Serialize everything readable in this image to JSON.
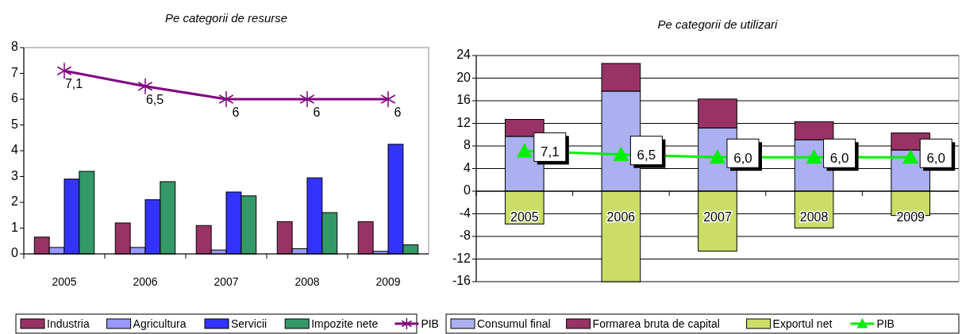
{
  "chart_data": [
    {
      "type": "bar",
      "title": "Pe categorii de resurse",
      "categories": [
        "2005",
        "2006",
        "2007",
        "2008",
        "2009"
      ],
      "ylim": [
        0,
        8
      ],
      "yticks": [
        0,
        1,
        2,
        3,
        4,
        5,
        6,
        7,
        8
      ],
      "grid": false,
      "legend": "bottom",
      "marker": "cross",
      "series": [
        {
          "name": "Industria",
          "color": "#993366",
          "values": [
            0.65,
            1.2,
            1.1,
            1.25,
            1.25
          ]
        },
        {
          "name": "Agricultura",
          "color": "#9999ff",
          "values": [
            0.25,
            0.25,
            0.15,
            0.2,
            0.1
          ]
        },
        {
          "name": "Servicii",
          "color": "#3333ff",
          "values": [
            2.9,
            2.1,
            2.4,
            2.95,
            4.25
          ]
        },
        {
          "name": "Impozite nete",
          "color": "#339966",
          "values": [
            3.2,
            2.8,
            2.25,
            1.6,
            0.35
          ]
        },
        {
          "name": "PIB",
          "type": "line",
          "color": "#800080",
          "values": [
            7.1,
            6.5,
            6,
            6,
            6
          ],
          "value_labels": [
            "7,1",
            "6,5",
            "6",
            "6",
            "6"
          ]
        }
      ]
    },
    {
      "type": "bar",
      "title": "Pe categorii de utilizari",
      "stacked": true,
      "categories": [
        "2005",
        "2006",
        "2007",
        "2008",
        "2009"
      ],
      "ylim": [
        -16,
        24
      ],
      "yticks": [
        -16,
        -12,
        -8,
        -4,
        0,
        4,
        8,
        12,
        16,
        20,
        24
      ],
      "grid": "y",
      "legend": "bottom",
      "marker": "triangle",
      "series": [
        {
          "name": "Consumul final",
          "color": "#aab0f0",
          "values": [
            9.7,
            17.7,
            11.2,
            9.1,
            7.3
          ]
        },
        {
          "name": "Formarea bruta de capital",
          "color": "#993366",
          "values": [
            3.0,
            4.9,
            5.1,
            3.2,
            3.0
          ]
        },
        {
          "name": "Exportul net",
          "color": "#ccdd66",
          "values": [
            -5.8,
            -16,
            -10.6,
            -6.5,
            -4.3
          ]
        },
        {
          "name": "PIB",
          "type": "line",
          "color": "#00ee00",
          "values": [
            7.1,
            6.5,
            6,
            6,
            6
          ],
          "value_labels": [
            "7,1",
            "6,5",
            "6,0",
            "6,0",
            "6,0"
          ]
        }
      ]
    }
  ]
}
